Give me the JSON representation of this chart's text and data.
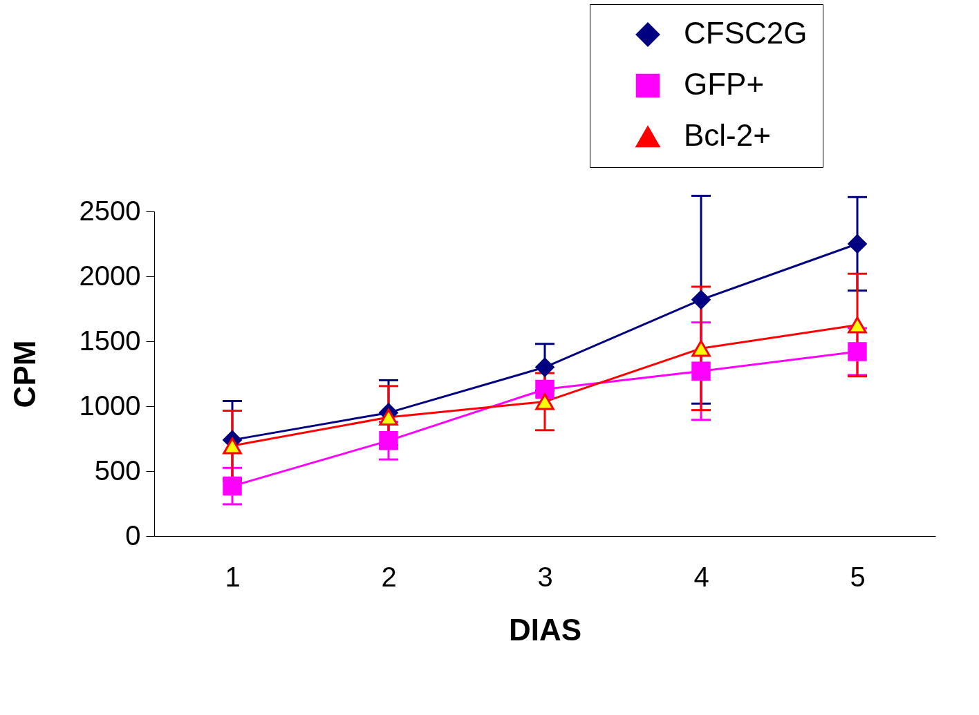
{
  "chart_data": {
    "type": "line",
    "xlabel": "DIAS",
    "ylabel": "CPM",
    "categories": [
      "1",
      "2",
      "3",
      "4",
      "5"
    ],
    "ylim": [
      0,
      2500
    ],
    "yticks": [
      0,
      500,
      1000,
      1500,
      2000,
      2500
    ],
    "grid": false,
    "legend": "top right",
    "series": [
      {
        "name": "CFSC2G",
        "color": "#000080",
        "marker": "diamond",
        "values": [
          740,
          950,
          1300,
          1820,
          2250
        ],
        "errors": [
          300,
          250,
          180,
          800,
          360
        ]
      },
      {
        "name": "GFP+",
        "color": "#ff00ff",
        "marker": "square",
        "values": [
          385,
          735,
          1130,
          1270,
          1420
        ],
        "errors": [
          140,
          145,
          null,
          375,
          180
        ]
      },
      {
        "name": "Bcl-2+",
        "color": "#ff0000",
        "marker": "triangle",
        "values": [
          695,
          915,
          1035,
          1445,
          1625
        ],
        "errors": [
          270,
          240,
          220,
          475,
          395
        ]
      }
    ]
  }
}
